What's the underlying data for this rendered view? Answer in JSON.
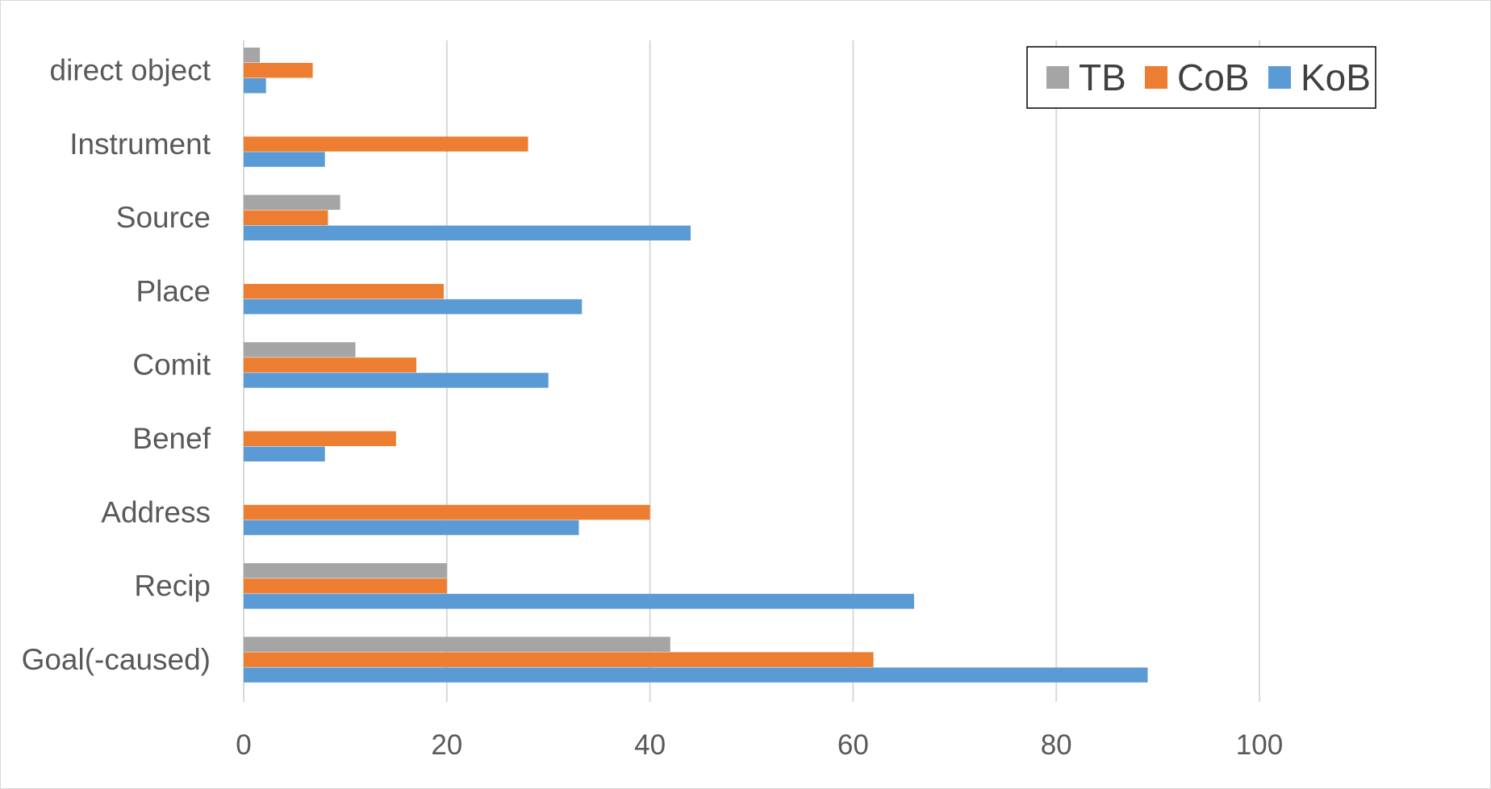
{
  "chart_data": {
    "type": "bar",
    "orientation": "horizontal",
    "categories": [
      "Goal(-caused)",
      "Recip",
      "Address",
      "Benef",
      "Comit",
      "Place",
      "Source",
      "Instrument",
      "direct object"
    ],
    "series": [
      {
        "name": "KoB",
        "color": "#5b9bd5",
        "values": [
          89,
          66,
          33,
          8,
          30,
          33.3,
          44,
          8,
          2.2
        ]
      },
      {
        "name": "CoB",
        "color": "#ed7d31",
        "values": [
          62,
          20,
          40,
          15,
          17,
          19.7,
          8.3,
          28,
          6.8
        ]
      },
      {
        "name": "TB",
        "color": "#a5a5a5",
        "values": [
          42,
          20,
          0,
          0,
          11,
          0,
          9.5,
          0,
          1.6
        ]
      }
    ],
    "xlim": [
      0,
      100
    ],
    "xticks": [
      "0",
      "20",
      "40",
      "60",
      "80",
      "100"
    ],
    "legend_order": [
      "TB",
      "CoB",
      "KoB"
    ],
    "legend_position": "top-right",
    "grid": "vertical",
    "title": "",
    "xlabel": "",
    "ylabel": ""
  }
}
